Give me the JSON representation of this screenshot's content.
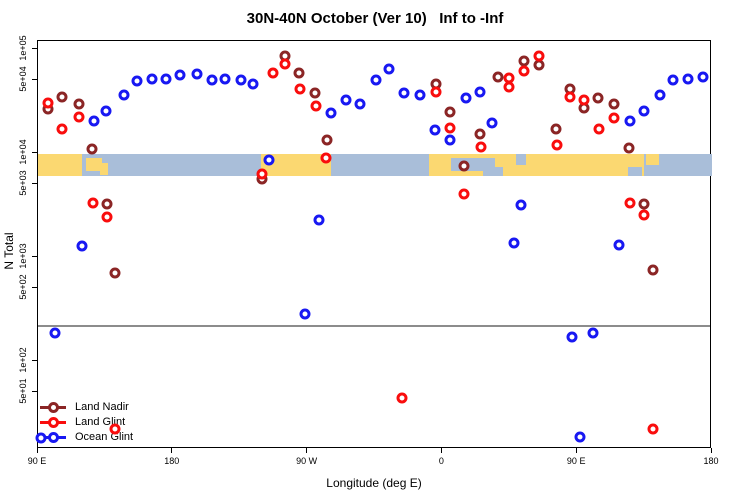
{
  "title": "30N-40N October (Ver 10)   Inf to -Inf",
  "xlabel": "Longitude (deg E)",
  "ylabel": "N Total",
  "legend": {
    "items": [
      "Land Nadir",
      "Land Glint",
      "Ocean Glint"
    ]
  },
  "colors": {
    "land_nadir": "#8B2525",
    "land_glint": "#F90D0D",
    "ocean_glint": "#1818F2",
    "map_land": "#FBD871",
    "map_ocean": "#A9BED9",
    "threshold_line": "#8C8C8C",
    "axis": "#000000"
  },
  "chart_data": {
    "type": "scatter",
    "title": "30N-40N October (Ver 10)   Inf to -Inf",
    "xlabel": "Longitude (deg E)",
    "ylabel": "N Total",
    "x_axis": {
      "note": "longitude axis starts at 90E and wraps eastward to 180; values below are degrees along axis from left edge",
      "range_axis_deg": [
        0,
        450
      ],
      "ticks_axis_deg": [
        0,
        90,
        180,
        270,
        360,
        450
      ],
      "tick_labels": [
        "90 E",
        "180",
        "90 W",
        "0",
        "90 E",
        "180"
      ]
    },
    "y_axis": {
      "scale": "log10",
      "range": [
        14,
        120000
      ],
      "tick_values": [
        50,
        100,
        500,
        1000,
        5000,
        10000,
        50000,
        100000
      ],
      "tick_labels": [
        "5e+01",
        "1e+02",
        "5e+02",
        "1e+03",
        "5e+03",
        "1e+04",
        "5e+04",
        "1e+05"
      ]
    },
    "threshold_line_value": 222,
    "map_band": {
      "value_top": 9780,
      "value_bottom": 6010,
      "land_segments": [
        {
          "from": 0,
          "to": 29.4,
          "part": "full"
        },
        {
          "from": 32.0,
          "to": 42.7,
          "part": "mid"
        },
        {
          "from": 41.4,
          "to": 46.7,
          "part": "low"
        },
        {
          "from": 148.9,
          "to": 195.6,
          "part": "full"
        },
        {
          "from": 261.1,
          "to": 404.6,
          "part": "full"
        },
        {
          "from": 405.9,
          "to": 414.6,
          "part": "top"
        }
      ],
      "ocean_cutouts": [
        {
          "from": 275.8,
          "to": 305.0,
          "part": "mid"
        },
        {
          "from": 297.1,
          "to": 310.4,
          "part": "bottom"
        },
        {
          "from": 319.1,
          "to": 325.8,
          "part": "top"
        },
        {
          "from": 394.0,
          "to": 403.3,
          "part": "bottom"
        }
      ]
    },
    "series": [
      {
        "name": "Land Nadir",
        "color": "#8B2525",
        "points": [
          [
            6.7,
            26500
          ],
          [
            16.0,
            34600
          ],
          [
            27.4,
            29600
          ],
          [
            36.1,
            10900
          ],
          [
            46.1,
            3230
          ],
          [
            51.4,
            702
          ],
          [
            149.6,
            5620
          ],
          [
            164.9,
            85700
          ],
          [
            174.3,
            58800
          ],
          [
            184.9,
            37800
          ],
          [
            192.9,
            13300
          ],
          [
            265.7,
            46100
          ],
          [
            275.1,
            24800
          ],
          [
            284.4,
            7500
          ],
          [
            295.1,
            15200
          ],
          [
            307.1,
            53800
          ],
          [
            324.5,
            76700
          ],
          [
            334.5,
            70200
          ],
          [
            345.8,
            17000
          ],
          [
            355.2,
            41300
          ],
          [
            364.5,
            27100
          ],
          [
            373.9,
            33800
          ],
          [
            384.6,
            29600
          ],
          [
            394.6,
            11200
          ],
          [
            404.6,
            3230
          ],
          [
            410.6,
            750
          ]
        ]
      },
      {
        "name": "Land Glint",
        "color": "#F90D0D",
        "points": [
          [
            6.7,
            30300
          ],
          [
            16.0,
            17000
          ],
          [
            27.4,
            22200
          ],
          [
            36.7,
            3310
          ],
          [
            46.1,
            2420
          ],
          [
            51.4,
            22.2
          ],
          [
            149.6,
            6280
          ],
          [
            156.9,
            58800
          ],
          [
            164.9,
            71800
          ],
          [
            174.9,
            41300
          ],
          [
            185.6,
            28300
          ],
          [
            192.3,
            8950
          ],
          [
            243.0,
            44.1
          ],
          [
            265.7,
            38600
          ],
          [
            275.1,
            17400
          ],
          [
            284.4,
            4030
          ],
          [
            295.8,
            11400
          ],
          [
            314.5,
            52600
          ],
          [
            314.5,
            43100
          ],
          [
            324.5,
            61400
          ],
          [
            334.5,
            85700
          ],
          [
            346.5,
            11900
          ],
          [
            355.2,
            34600
          ],
          [
            364.5,
            32300
          ],
          [
            374.6,
            17000
          ],
          [
            384.6,
            21700
          ],
          [
            395.3,
            3310
          ],
          [
            404.6,
            2530
          ],
          [
            410.6,
            22.2
          ]
        ]
      },
      {
        "name": "Ocean Glint",
        "color": "#1818F2",
        "points": [
          [
            2.0,
            18.2
          ],
          [
            11.3,
            186
          ],
          [
            29.4,
            1280
          ],
          [
            37.4,
            20300
          ],
          [
            45.4,
            25300
          ],
          [
            57.4,
            36100
          ],
          [
            66.1,
            49200
          ],
          [
            76.1,
            51500
          ],
          [
            85.5,
            51500
          ],
          [
            94.8,
            56200
          ],
          [
            106.2,
            57500
          ],
          [
            116.2,
            50300
          ],
          [
            124.8,
            51500
          ],
          [
            135.5,
            50300
          ],
          [
            143.6,
            46100
          ],
          [
            154.2,
            8570
          ],
          [
            178.3,
            283
          ],
          [
            187.6,
            2270
          ],
          [
            195.6,
            24300
          ],
          [
            205.6,
            32300
          ],
          [
            215.0,
            29600
          ],
          [
            225.7,
            50300
          ],
          [
            234.3,
            64200
          ],
          [
            244.4,
            37800
          ],
          [
            255.0,
            36100
          ],
          [
            265.1,
            16600
          ],
          [
            275.1,
            13300
          ],
          [
            285.8,
            33800
          ],
          [
            295.1,
            38600
          ],
          [
            303.1,
            19400
          ],
          [
            317.8,
            1360
          ],
          [
            322.5,
            3160
          ],
          [
            356.5,
            170
          ],
          [
            361.9,
            18.6
          ],
          [
            370.5,
            186
          ],
          [
            387.9,
            1300
          ],
          [
            395.3,
            20300
          ],
          [
            404.6,
            25300
          ],
          [
            415.3,
            36100
          ],
          [
            424.0,
            50300
          ],
          [
            434.0,
            51500
          ],
          [
            444.0,
            53800
          ]
        ]
      }
    ]
  }
}
